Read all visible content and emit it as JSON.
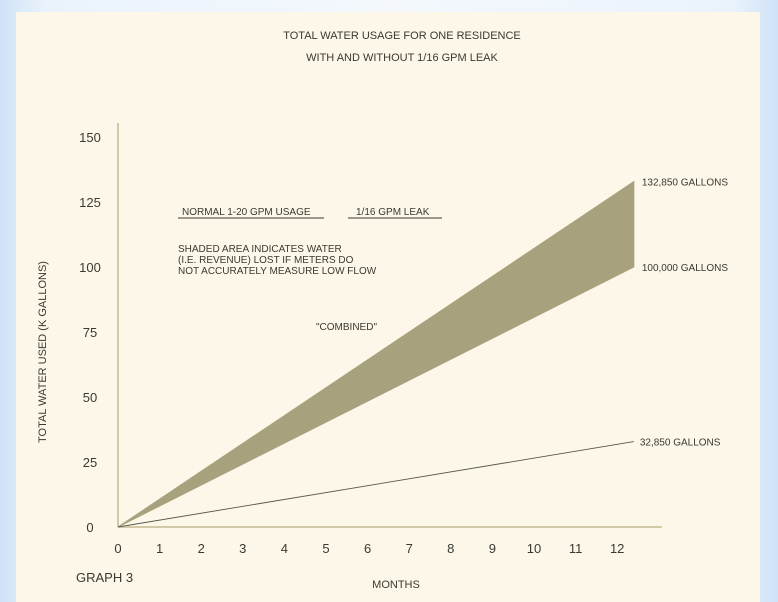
{
  "chart_data": {
    "type": "area",
    "title": "TOTAL WATER USAGE FOR ONE RESIDENCE",
    "subtitle": "WITH AND WITHOUT 1/16 GPM LEAK",
    "xlabel": "MONTHS",
    "ylabel": "TOTAL WATER USED (K GALLONS)",
    "x_ticks": [
      "0",
      "1",
      "2",
      "3",
      "4",
      "5",
      "6",
      "7",
      "8",
      "9",
      "10",
      "11",
      "12"
    ],
    "y_ticks": [
      "0",
      "25",
      "50",
      "75",
      "100",
      "125",
      "150"
    ],
    "xlim": [
      0,
      12.4
    ],
    "ylim": [
      0,
      150
    ],
    "series": [
      {
        "name": "1/16 GPM LEAK",
        "x": [
          0,
          12.4
        ],
        "values": [
          0,
          32.85
        ],
        "end_label": "32,850 GALLONS",
        "color": "#55584a"
      },
      {
        "name": "NORMAL 1-20 GPM USAGE",
        "x": [
          0,
          12.4
        ],
        "values": [
          0,
          100
        ],
        "end_label": "100,000 GALLONS",
        "color": "#a7a27d"
      },
      {
        "name": "\"COMBINED\"",
        "x": [
          0,
          12.4
        ],
        "values": [
          0,
          132.85
        ],
        "end_label": "132,850 GALLONS",
        "color": "#a7a27d"
      }
    ],
    "legend": [
      "NORMAL 1-20 GPM USAGE",
      "1/16 GPM LEAK"
    ],
    "annotations": [
      "SHADED AREA INDICATES WATER",
      "(I.E. REVENUE) LOST IF METERS DO",
      "NOT ACCURATELY MEASURE LOW FLOW"
    ],
    "combined_label": "\"COMBINED\"",
    "footer_label": "GRAPH 3",
    "shade_color": "#a7a27d",
    "axis_color": "#c3bc91",
    "grid": false
  }
}
